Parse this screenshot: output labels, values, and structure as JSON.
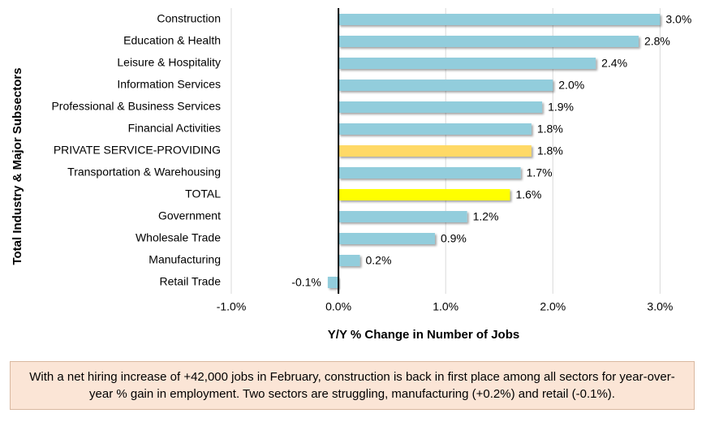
{
  "chart_data": {
    "type": "barh",
    "y_axis_label": "Total Industry & Major Subsectors",
    "x_axis_label": "Y/Y % Change in Number of Jobs",
    "categories": [
      "Construction",
      "Education & Health",
      "Leisure & Hospitality",
      "Information Services",
      "Professional & Business Services",
      "Financial Activities",
      "PRIVATE SERVICE-PROVIDING",
      "Transportation & Warehousing",
      "TOTAL",
      "Government",
      "Wholesale Trade",
      "Manufacturing",
      "Retail Trade"
    ],
    "values": [
      3.0,
      2.8,
      2.4,
      2.0,
      1.9,
      1.8,
      1.8,
      1.7,
      1.6,
      1.2,
      0.9,
      0.2,
      -0.1
    ],
    "value_labels": [
      "3.0%",
      "2.8%",
      "2.4%",
      "2.0%",
      "1.9%",
      "1.8%",
      "1.8%",
      "1.7%",
      "1.6%",
      "1.2%",
      "0.9%",
      "0.2%",
      "-0.1%"
    ],
    "colors": [
      "#92cddc",
      "#92cddc",
      "#92cddc",
      "#92cddc",
      "#92cddc",
      "#92cddc",
      "#ffd966",
      "#92cddc",
      "#ffff00",
      "#92cddc",
      "#92cddc",
      "#92cddc",
      "#92cddc"
    ],
    "xlim": [
      -1.0,
      3.3
    ],
    "xticks": [
      {
        "value": -1.0,
        "label": "-1.0%"
      },
      {
        "value": 0.0,
        "label": "0.0%"
      },
      {
        "value": 1.0,
        "label": "1.0%"
      },
      {
        "value": 2.0,
        "label": "2.0%"
      },
      {
        "value": 3.0,
        "label": "3.0%"
      }
    ],
    "grid": true,
    "annotation": "With a net hiring increase of +42,000 jobs in February, construction is back in first place among all sectors for year-over-year % gain in employment. Two sectors are struggling, manufacturing (+0.2%) and retail (-0.1%)."
  }
}
